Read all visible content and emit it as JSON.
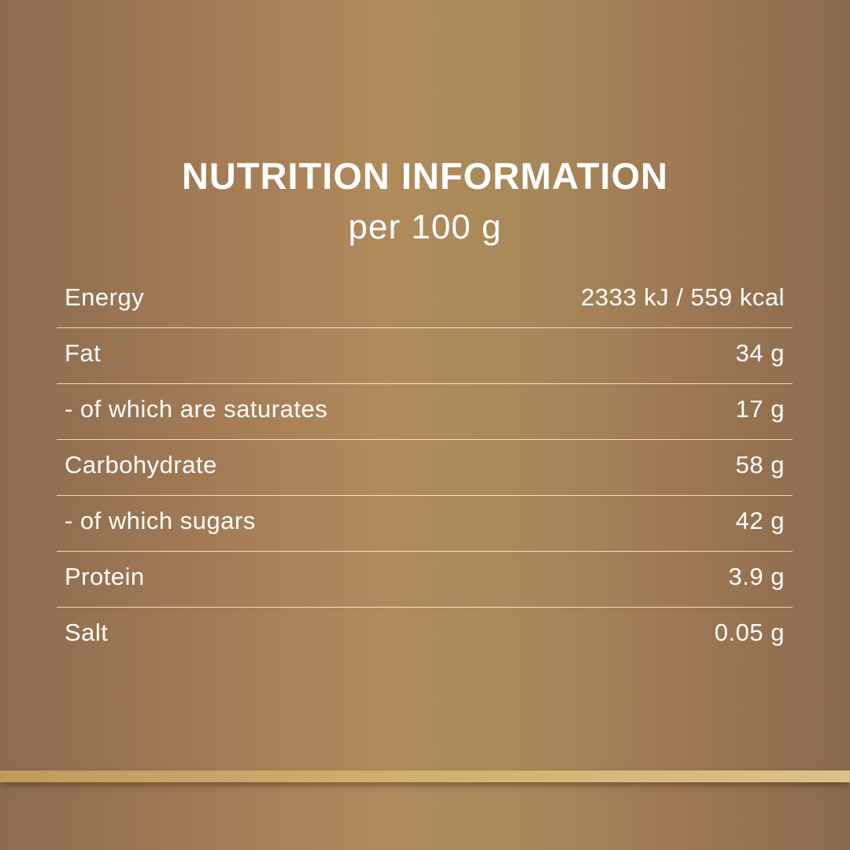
{
  "header": {
    "title": "NUTRITION INFORMATION",
    "subtitle": "per 100 g"
  },
  "rows": [
    {
      "label": "Energy",
      "value": "2333 kJ / 559 kcal"
    },
    {
      "label": "Fat",
      "value": "34 g"
    },
    {
      "label": "- of which are saturates",
      "value": "17 g"
    },
    {
      "label": "Carbohydrate",
      "value": "58 g"
    },
    {
      "label": "- of which sugars",
      "value": "42 g"
    },
    {
      "label": "Protein",
      "value": "3.9 g"
    },
    {
      "label": "Salt",
      "value": "0.05 g"
    }
  ],
  "colors": {
    "background": "#a98a5a",
    "accent_band": "#d0b070",
    "text": "#ffffff"
  }
}
